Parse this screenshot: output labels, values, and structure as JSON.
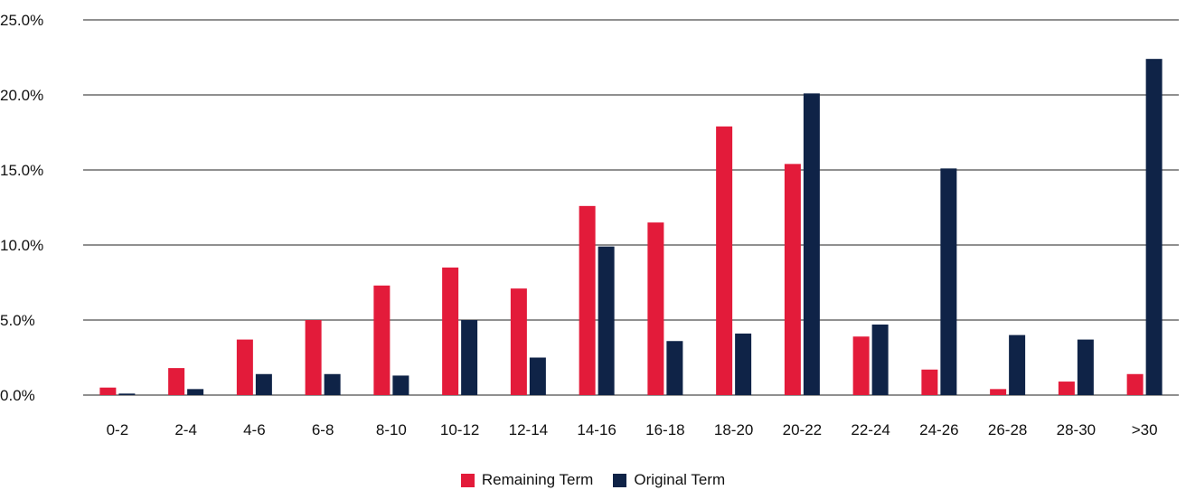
{
  "chart_data": {
    "type": "bar",
    "categories": [
      "0-2",
      "2-4",
      "4-6",
      "6-8",
      "8-10",
      "10-12",
      "12-14",
      "14-16",
      "16-18",
      "18-20",
      "20-22",
      "22-24",
      "24-26",
      "26-28",
      "28-30",
      ">30"
    ],
    "series": [
      {
        "name": "Remaining Term",
        "color": "#e31b3a",
        "values": [
          0.5,
          1.8,
          3.7,
          5.0,
          7.3,
          8.5,
          7.1,
          12.6,
          11.5,
          17.9,
          15.4,
          3.9,
          1.7,
          0.4,
          0.9,
          1.4
        ]
      },
      {
        "name": "Original Term",
        "color": "#0f2347",
        "values": [
          0.1,
          0.4,
          1.4,
          1.4,
          1.3,
          5.0,
          2.5,
          9.9,
          3.6,
          4.1,
          20.1,
          4.7,
          15.1,
          4.0,
          3.7,
          22.4
        ]
      }
    ],
    "yticks": [
      "0.0%",
      "5.0%",
      "10.0%",
      "15.0%",
      "20.0%",
      "25.0%"
    ],
    "ylim": [
      0,
      25
    ],
    "grid": true,
    "legend_position": "bottom-center",
    "title": "",
    "xlabel": "",
    "ylabel": ""
  }
}
